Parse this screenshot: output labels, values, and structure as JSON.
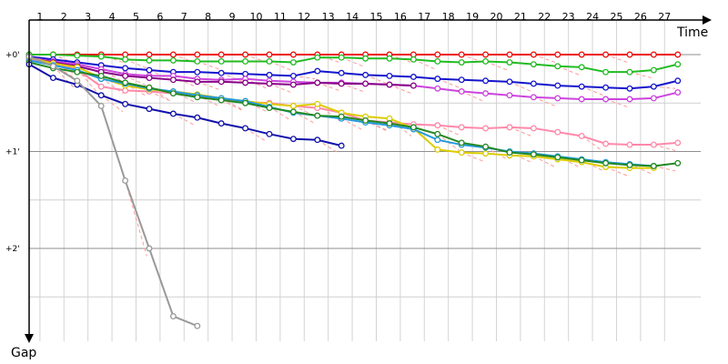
{
  "chart_data": {
    "type": "line",
    "title": "",
    "xlabel": "Time",
    "ylabel": "Gap",
    "x_ticks": [
      1,
      2,
      3,
      4,
      5,
      6,
      7,
      8,
      9,
      10,
      11,
      12,
      13,
      14,
      15,
      16,
      17,
      18,
      19,
      20,
      21,
      22,
      23,
      24,
      25,
      26,
      27
    ],
    "y_ticks": [
      "+0'",
      "+1'",
      "+2'"
    ],
    "xlim": [
      1,
      28
    ],
    "ylim_minutes": [
      0,
      2.85
    ],
    "y_direction": "down",
    "grid": true,
    "legend": "none",
    "colors": {
      "grid": "#bbbbbb",
      "dashed_connector": "#ff9999",
      "axis": "#000000"
    },
    "series": [
      {
        "color": "#ee1111",
        "values": [
          0,
          0,
          0,
          0,
          0,
          0,
          0,
          0,
          0,
          0,
          0,
          0,
          0,
          0,
          0,
          0,
          0,
          0,
          0,
          0,
          0,
          0,
          0,
          0,
          0,
          0,
          0,
          0
        ]
      },
      {
        "color": "#22bb22",
        "values": [
          0,
          0,
          0.01,
          0.02,
          0.05,
          0.06,
          0.06,
          0.07,
          0.07,
          0.07,
          0.07,
          0.08,
          0.03,
          0.03,
          0.04,
          0.04,
          0.05,
          0.07,
          0.08,
          0.07,
          0.08,
          0.1,
          0.12,
          0.13,
          0.18,
          0.18,
          0.16,
          0.1
        ]
      },
      {
        "color": "#1515cc",
        "values": [
          0.02,
          0.05,
          0.08,
          0.11,
          0.14,
          0.16,
          0.18,
          0.18,
          0.19,
          0.2,
          0.21,
          0.22,
          0.17,
          0.19,
          0.21,
          0.22,
          0.23,
          0.25,
          0.26,
          0.27,
          0.28,
          0.3,
          0.32,
          0.33,
          0.34,
          0.35,
          0.33,
          0.27
        ]
      },
      {
        "color": "#cc44dd",
        "values": [
          0.03,
          0.07,
          0.1,
          0.15,
          0.2,
          0.22,
          0.22,
          0.25,
          0.26,
          0.25,
          0.27,
          0.28,
          0.29,
          0.29,
          0.3,
          0.31,
          0.32,
          0.35,
          0.38,
          0.4,
          0.42,
          0.44,
          0.45,
          0.46,
          0.46,
          0.46,
          0.45,
          0.39
        ]
      },
      {
        "color": "#880088",
        "values": [
          0.04,
          0.08,
          0.12,
          0.18,
          0.22,
          0.24,
          0.26,
          0.28,
          0.28,
          0.29,
          0.3,
          0.31,
          0.29,
          0.3,
          0.3,
          0.31,
          0.32
        ]
      },
      {
        "color": "#ff88aa",
        "values": [
          0.05,
          0.1,
          0.15,
          0.33,
          0.37,
          0.38,
          0.4,
          0.43,
          0.45,
          0.49,
          0.5,
          0.53,
          0.55,
          0.6,
          0.68,
          0.7,
          0.72,
          0.73,
          0.75,
          0.76,
          0.75,
          0.76,
          0.8,
          0.84,
          0.92,
          0.93,
          0.93,
          0.91
        ]
      },
      {
        "color": "#ddcc00",
        "values": [
          0.03,
          0.09,
          0.13,
          0.24,
          0.32,
          0.36,
          0.38,
          0.41,
          0.45,
          0.48,
          0.51,
          0.53,
          0.51,
          0.6,
          0.64,
          0.66,
          0.76,
          0.98,
          1.01,
          1.02,
          1.04,
          1.05,
          1.08,
          1.11,
          1.16,
          1.17,
          1.17
        ]
      },
      {
        "color": "#2299dd",
        "values": [
          0.06,
          0.11,
          0.16,
          0.25,
          0.3,
          0.35,
          0.38,
          0.42,
          0.45,
          0.48,
          0.54,
          0.6,
          0.63,
          0.66,
          0.7,
          0.73,
          0.77,
          0.88,
          0.93,
          0.96,
          1.0,
          1.02,
          1.05,
          1.08,
          1.11,
          1.13,
          1.15
        ]
      },
      {
        "color": "#228822",
        "values": [
          0.08,
          0.14,
          0.18,
          0.22,
          0.29,
          0.34,
          0.4,
          0.44,
          0.47,
          0.5,
          0.55,
          0.59,
          0.63,
          0.64,
          0.68,
          0.71,
          0.75,
          0.82,
          0.91,
          0.95,
          1.01,
          1.03,
          1.06,
          1.09,
          1.12,
          1.14,
          1.15,
          1.12
        ]
      },
      {
        "color": "#1111aa",
        "values": [
          0.1,
          0.24,
          0.31,
          0.42,
          0.51,
          0.56,
          0.61,
          0.65,
          0.71,
          0.76,
          0.82,
          0.87,
          0.88,
          0.94
        ]
      },
      {
        "color": "#999999",
        "values": [
          0.02,
          0.12,
          0.27,
          0.53,
          1.3,
          2.0,
          2.7,
          2.8
        ]
      }
    ]
  }
}
